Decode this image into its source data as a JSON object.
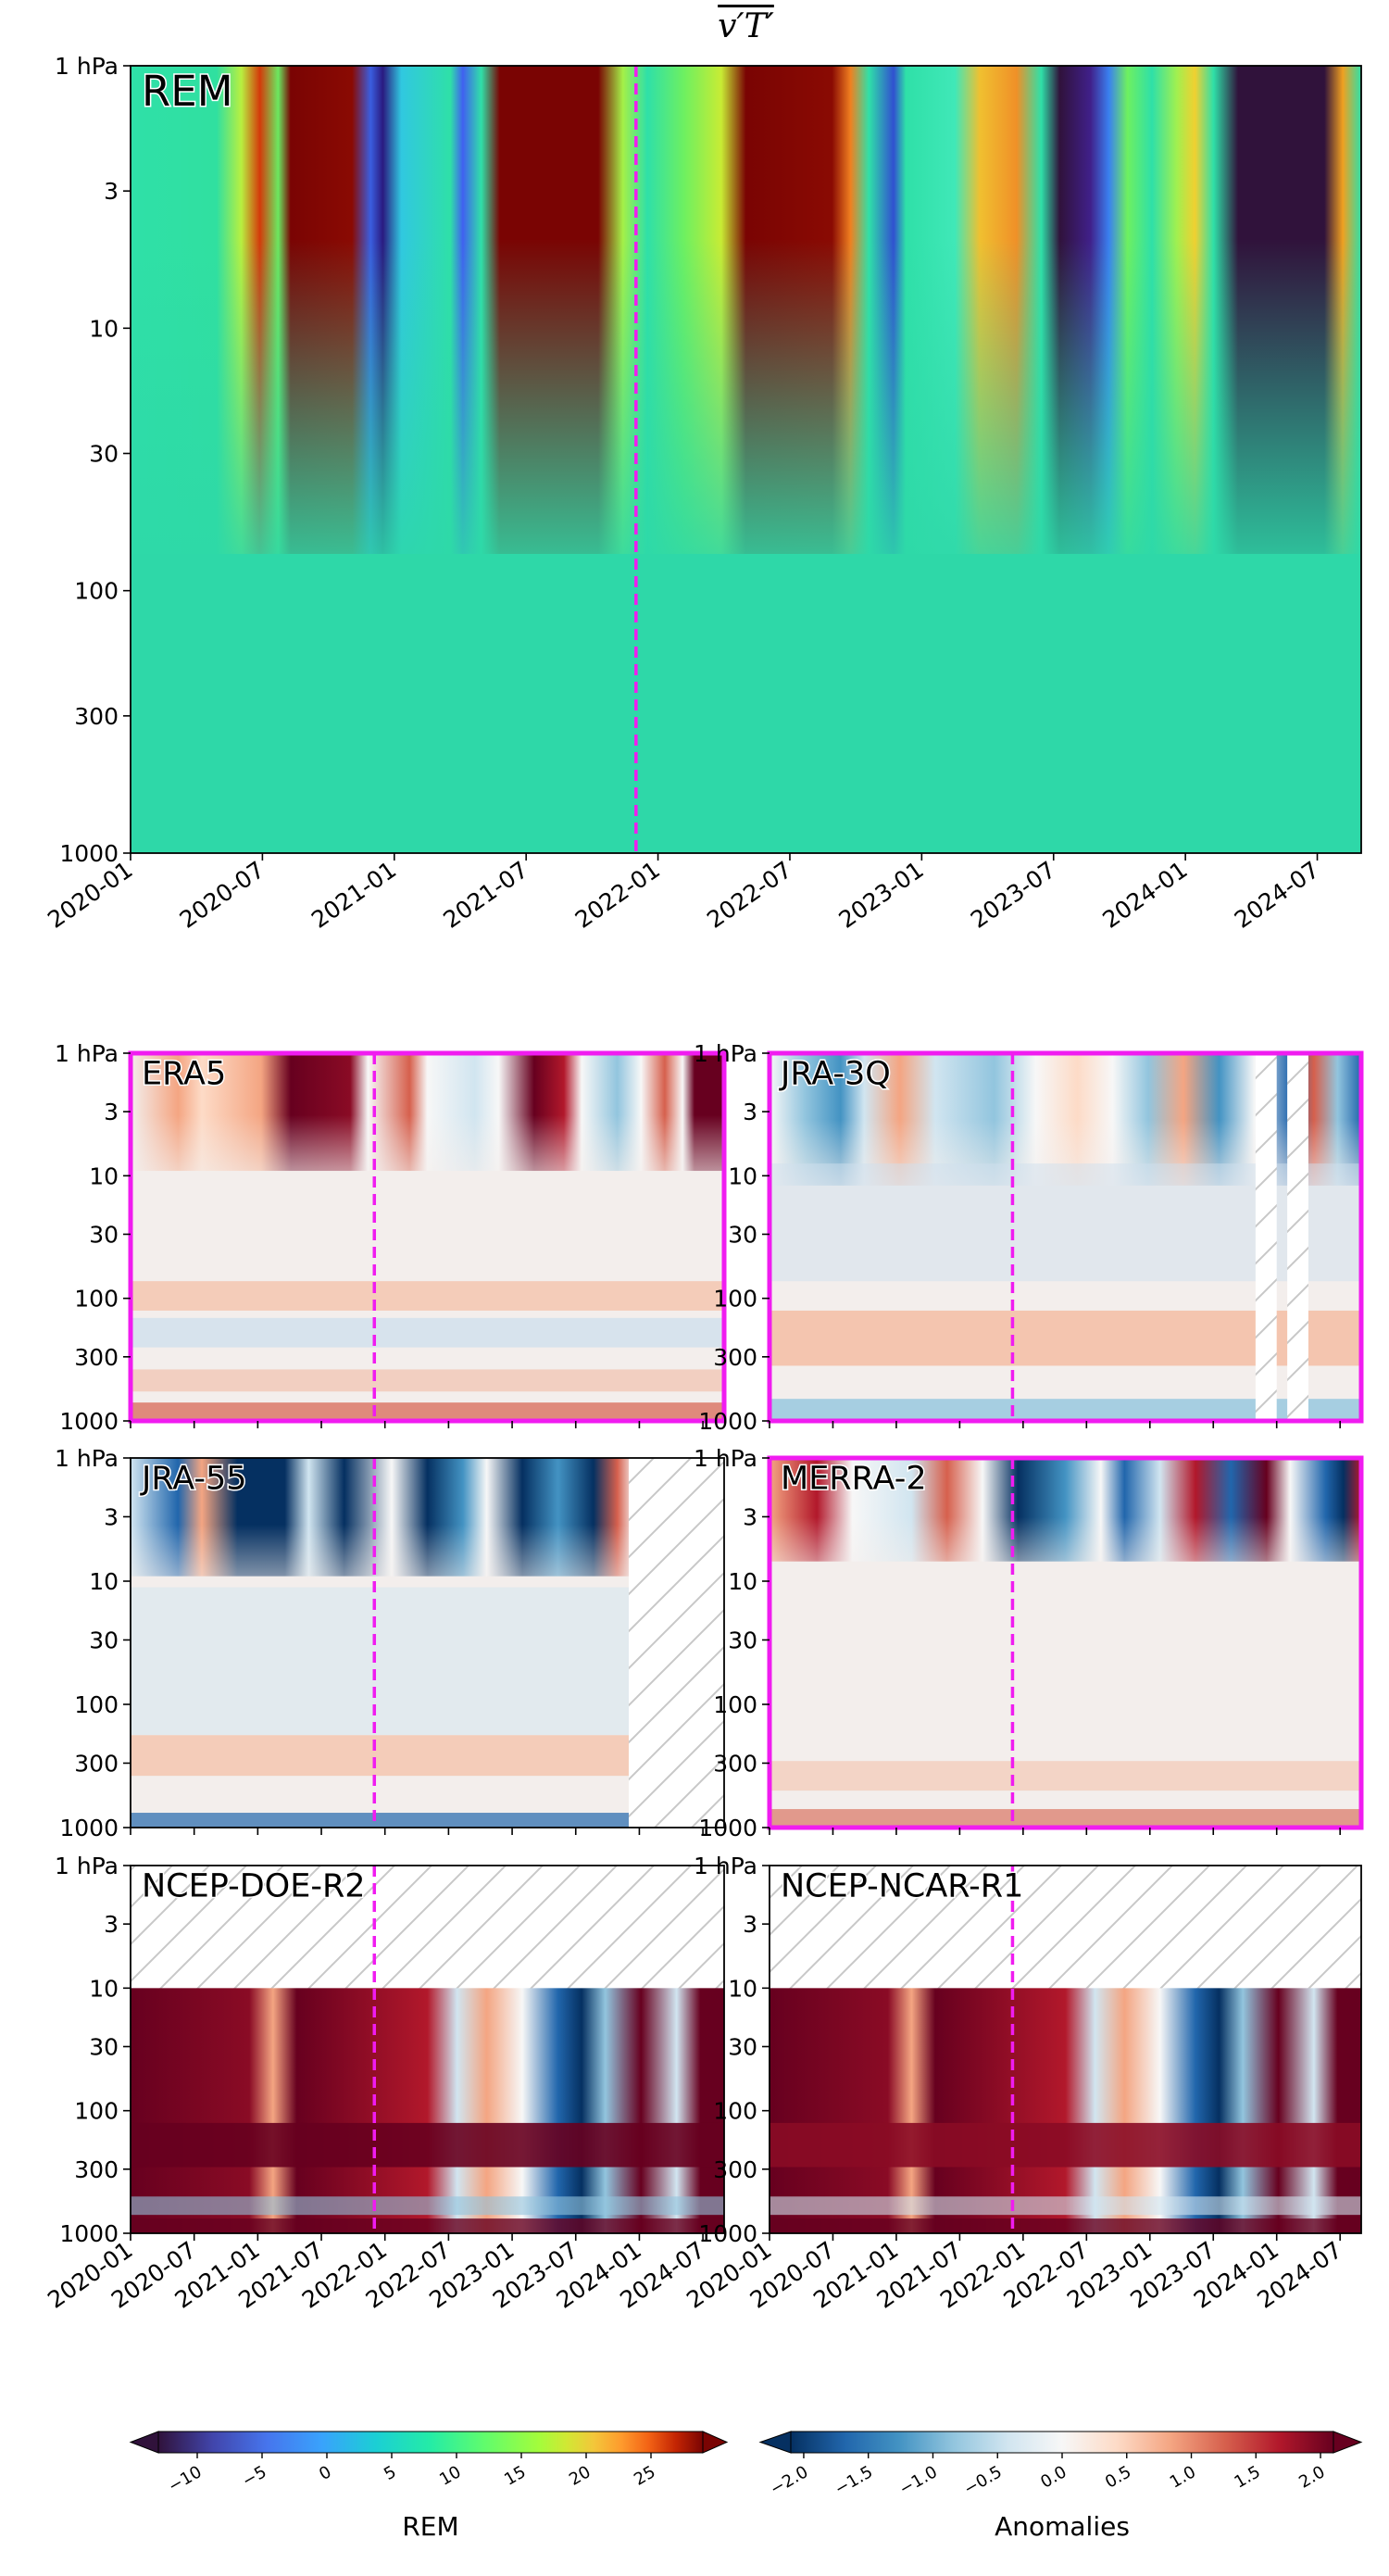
{
  "chart_data": {
    "type": "contour",
    "title": "v′T′",
    "xlim": [
      "2020-01",
      "2024-09"
    ],
    "xticks": [
      "2020-01",
      "2020-07",
      "2021-01",
      "2021-07",
      "2022-01",
      "2022-07",
      "2023-01",
      "2023-07",
      "2024-01",
      "2024-07"
    ],
    "ylim": [
      1,
      1000
    ],
    "log_y": true,
    "y_inverted": true,
    "yticks": [
      {
        "value": 1,
        "label": "1 hPa"
      },
      3,
      10,
      30,
      100,
      300,
      1000
    ],
    "event_date": "2021-12",
    "event_color": "#f01cf0",
    "panels": [
      {
        "name": "REM",
        "label_color": "#f01cf0",
        "colorbar": 0
      },
      {
        "name": "ERA5",
        "frame_color": "#f01cf0",
        "colorbar": 1
      },
      {
        "name": "JRA-3Q",
        "frame_color": "#f01cf0",
        "colorbar": 1,
        "missing_periods": [
          [
            "2023-11",
            "2024-01"
          ],
          [
            "2024-02",
            "2024-04"
          ]
        ]
      },
      {
        "name": "JRA-55",
        "frame_color": "#000000",
        "colorbar": 1,
        "missing_periods": [
          [
            "2023-12",
            "2024-09"
          ]
        ]
      },
      {
        "name": "MERRA-2",
        "frame_color": "#f01cf0",
        "colorbar": 1
      },
      {
        "name": "NCEP-DOE-R2",
        "frame_color": "#000000",
        "colorbar": 1,
        "missing_above": 10
      },
      {
        "name": "NCEP-NCAR-R1",
        "frame_color": "#000000",
        "colorbar": 1,
        "missing_above": 10
      }
    ],
    "colorbars": [
      {
        "label": "REM",
        "colormap": "turbo",
        "clim": [
          -13,
          29
        ],
        "extend": "both",
        "ticks": [
          {
            "value": -10,
            "label": "−10"
          },
          {
            "value": -5,
            "label": "−5"
          },
          0,
          5,
          10,
          15,
          20,
          25
        ]
      },
      {
        "label": "Anomalies",
        "colormap": "RdBu_r",
        "clim": [
          -2.1,
          2.1
        ],
        "extend": "both",
        "ticks": [
          {
            "value": -2.0,
            "label": "−2.0"
          },
          {
            "value": -1.5,
            "label": "−1.5"
          },
          {
            "value": -1.0,
            "label": "−1.0"
          },
          {
            "value": -0.5,
            "label": "−0.5"
          },
          {
            "value": 0.0,
            "label": "0.0"
          },
          0.5,
          {
            "value": 1.0,
            "label": "1.0"
          },
          1.5,
          {
            "value": 2.0,
            "label": "2.0"
          }
        ]
      }
    ]
  }
}
